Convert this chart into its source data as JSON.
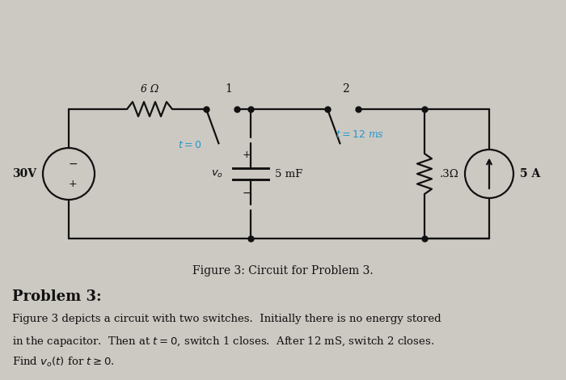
{
  "bg_color": "#ccc8c2",
  "title": "Figure 3: Circuit for Problem 3.",
  "problem_header": "Problem 3:",
  "problem_text_line1": "Figure 3 depicts a circuit with two switches.  Initially there is no energy stored",
  "problem_text_line2": "in the capacitor.  Then at $t = 0$, switch 1 closes.  After 12 mS, switch 2 closes.",
  "problem_text_line3": "Find $v_o(t)$ for $t \\geq 0$.",
  "resistor_label": "6 Ω",
  "switch1_label": "1",
  "switch1_time": "$t=0$",
  "capacitor_label": "5 mF",
  "vo_label": "$v_o$",
  "switch2_label": "2",
  "switch2_time": "$t=12$ ms",
  "right_resistor_label": ".3Ω",
  "right_source_label": "5 A",
  "left_source_label": "30V",
  "lw": 1.6,
  "black": "#111111",
  "cyan": "#2299cc"
}
